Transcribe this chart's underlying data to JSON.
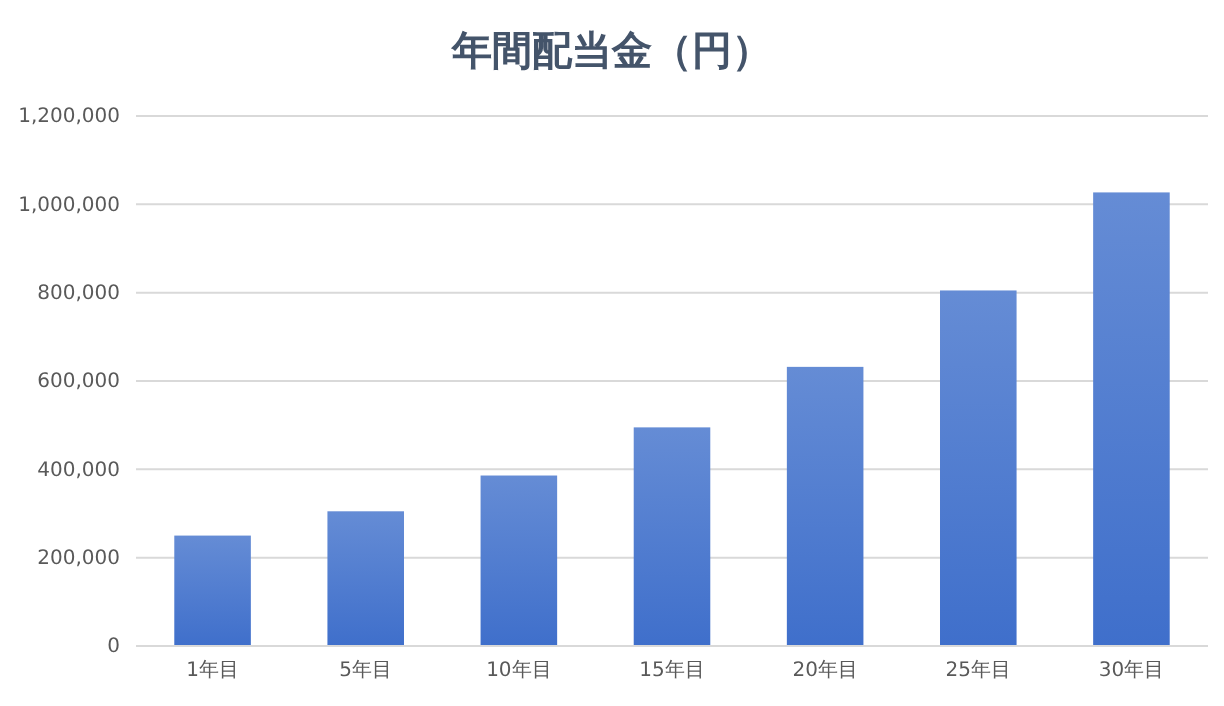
{
  "chart_data": {
    "type": "bar",
    "title": "年間配当金（円）",
    "categories": [
      "1年目",
      "5年目",
      "10年目",
      "15年目",
      "20年目",
      "25年目",
      "30年目"
    ],
    "values": [
      250000,
      305000,
      386000,
      495000,
      632000,
      805000,
      1027000
    ],
    "color": "#3f6fcb",
    "ylim": [
      0,
      1200000
    ],
    "yticks": [
      0,
      {
        "value": 200000,
        "label": "200,000"
      },
      {
        "value": 400000,
        "label": "400,000"
      },
      {
        "value": 600000,
        "label": "600,000"
      },
      {
        "value": 800000,
        "label": "800,000"
      },
      {
        "value": 1000000,
        "label": "1,000,000"
      },
      {
        "value": 1200000,
        "label": "1,200,000"
      }
    ],
    "grid": "y"
  }
}
